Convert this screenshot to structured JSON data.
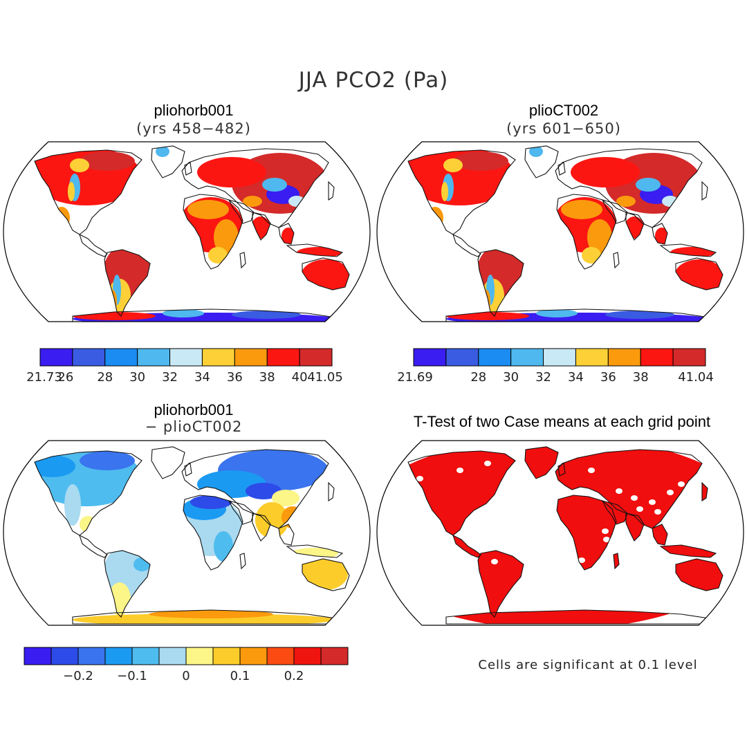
{
  "figure": {
    "title": "JJA PCO2 (Pa)"
  },
  "panels": [
    {
      "id": "p1",
      "title": "pliohorb001",
      "subtitle": "(yrs 458−482)",
      "palette": "ocean",
      "colorbar": {
        "colors": [
          "#3a1df0",
          "#3a5ce2",
          "#1b8cf2",
          "#4fb8ee",
          "#c9e9f6",
          "#fcd036",
          "#fb9a0d",
          "#fc1612",
          "#d42a2a"
        ],
        "labels": [
          "21.73",
          "26",
          "28",
          "30",
          "32",
          "34",
          "36",
          "38",
          "40",
          "41.05"
        ]
      }
    },
    {
      "id": "p2",
      "title": "plioCT002",
      "subtitle": "(yrs 601−650)",
      "palette": "ocean",
      "colorbar": {
        "colors": [
          "#3a1df0",
          "#3a5ce2",
          "#1b8cf2",
          "#4fb8ee",
          "#c9e9f6",
          "#fcd036",
          "#fb9a0d",
          "#fc1612",
          "#d42a2a"
        ],
        "labels": [
          "21.69",
          "",
          "28",
          "30",
          "32",
          "34",
          "36",
          "38",
          "",
          "41.04"
        ]
      }
    },
    {
      "id": "p3",
      "title": "pliohorb001",
      "subtitle": "− plioCT002",
      "palette": "diff",
      "colorbar": {
        "colors": [
          "#3a1df0",
          "#2d4be8",
          "#3a74ee",
          "#1b9af2",
          "#4fbcef",
          "#a9daf0",
          "#fcf587",
          "#fccc2a",
          "#fb9a0d",
          "#fb4b12",
          "#f0140f",
          "#d42a2a"
        ],
        "labels": [
          "",
          "",
          "−0.2",
          "",
          "−0.1",
          "",
          "0",
          "",
          "0.1",
          "",
          "0.2",
          "",
          ""
        ]
      }
    },
    {
      "id": "p4",
      "title": "T-Test of two Case means at each grid point",
      "subtitle": "",
      "palette": "ttest",
      "note": "Cells are significant at 0.1 level"
    }
  ],
  "colors": {
    "frame": "#000000",
    "coast": "#111111",
    "significant": "#f00e0e"
  }
}
